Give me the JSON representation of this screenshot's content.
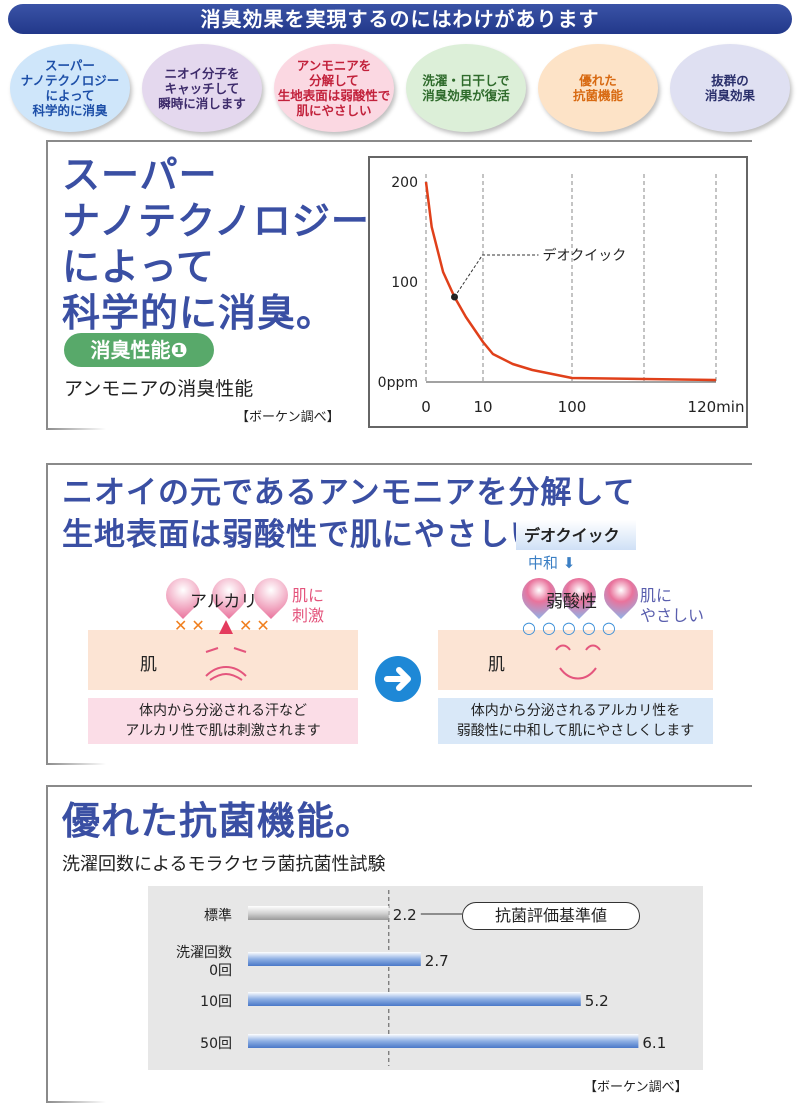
{
  "banner": {
    "title": "消臭効果を実現するのにはわけがあります"
  },
  "bubbles": [
    {
      "label": "スーパー\nナノテクノロジー\nによって\n科学的に消臭",
      "bg": "#cfe6fa",
      "fg": "#1d4fa8"
    },
    {
      "label": "ニオイ分子を\nキャッチして\n瞬時に消します",
      "bg": "#e4d8ee",
      "fg": "#3d2b6b"
    },
    {
      "label": "アンモニアを\n分解して\n生地表面は弱酸性で\n肌にやさしい",
      "bg": "#fbd8e2",
      "fg": "#c2213b"
    },
    {
      "label": "洗濯・日干しで\n消臭効果が復活",
      "bg": "#dcefd8",
      "fg": "#2f6b2c"
    },
    {
      "label": "優れた\n抗菌機能",
      "bg": "#fde3c7",
      "fg": "#d86a12"
    },
    {
      "label": "抜群の\n消臭効果",
      "bg": "#dfe0f2",
      "fg": "#2a2f6b"
    }
  ],
  "section1": {
    "title_lines": [
      "スーパー",
      "ナノテクノロジー",
      "によって",
      "科学的に消臭。"
    ],
    "badge": "消臭性能❶",
    "subtitle": "アンモニアの消臭性能",
    "source": "【ボーケン調べ】"
  },
  "chart_data": {
    "type": "line",
    "series": [
      {
        "name": "デオクイック",
        "x": [
          0,
          1,
          3,
          5,
          7,
          10,
          20,
          40,
          60,
          80,
          100,
          120
        ],
        "y": [
          200,
          155,
          110,
          85,
          65,
          40,
          28,
          18,
          12,
          8,
          4,
          2
        ]
      }
    ],
    "x_ticks": [
      "0",
      "10",
      "100",
      "120min"
    ],
    "y_ticks": [
      "200",
      "100",
      "0ppm"
    ],
    "annotation": "デオクイック",
    "ylim": [
      0,
      200
    ],
    "grid": "dashed vertical",
    "line_color": "#e0401a"
  },
  "section2": {
    "title_lines": [
      "ニオイの元であるアンモニアを分解して",
      "生地表面は弱酸性で肌にやさしい。"
    ],
    "brand": "デオクイック",
    "neutralize": "中和 ⬇",
    "left": {
      "drop_label": "アルカリ",
      "side": "肌に\n刺激",
      "skin": "肌",
      "note": "体内から分泌される汗など\nアルカリ性で肌は刺激されます"
    },
    "right": {
      "drop_label": "弱酸性",
      "side": "肌に\nやさしい",
      "skin": "肌",
      "note": "体内から分泌されるアルカリ性を\n弱酸性に中和して肌にやさしくします"
    }
  },
  "section3": {
    "title": "優れた抗菌機能。",
    "subtitle": "洗濯回数によるモラクセラ菌抗菌性試験",
    "source": "【ボーケン調べ】",
    "reference_label": "抗菌評価基準値"
  },
  "bar_chart_data": {
    "type": "bar",
    "orientation": "horizontal",
    "categories": [
      "標準",
      "洗濯回数\n0回",
      "10回",
      "50回"
    ],
    "values": [
      2.2,
      2.7,
      5.2,
      6.1
    ],
    "value_labels": [
      "2.2",
      "2.7",
      "5.2",
      "6.1"
    ],
    "reference_value": 2.2,
    "xlim": [
      0,
      8
    ]
  }
}
